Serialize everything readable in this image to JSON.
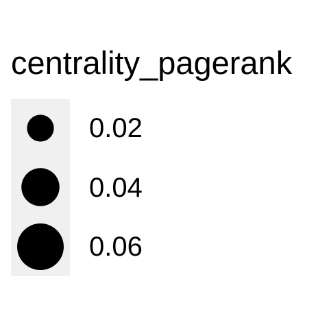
{
  "chart_data": {
    "type": "legend",
    "title": "centrality_pagerank",
    "legend": {
      "kind": "size",
      "entries": [
        {
          "label": "0.02",
          "value": 0.02
        },
        {
          "label": "0.04",
          "value": 0.04
        },
        {
          "label": "0.06",
          "value": 0.06
        }
      ],
      "key_background": "#f0f0f0",
      "point_color": "#000000"
    }
  }
}
